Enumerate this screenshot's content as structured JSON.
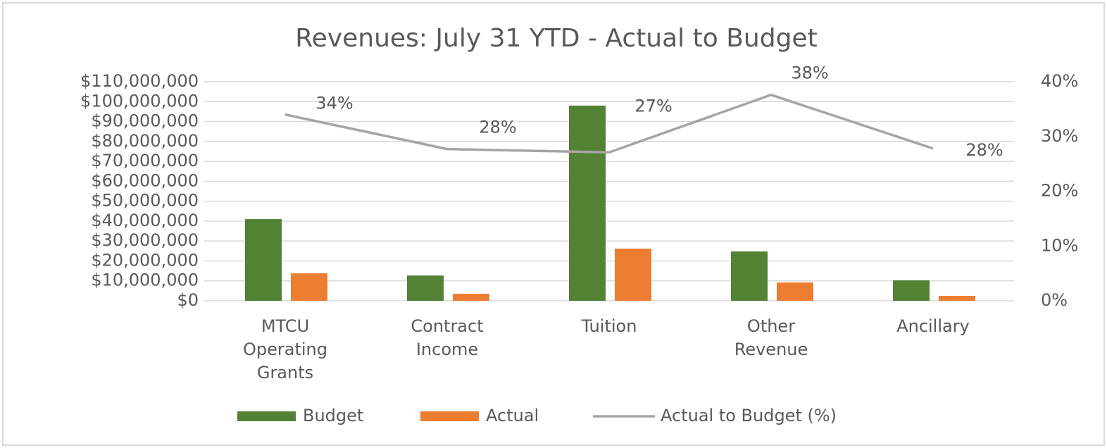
{
  "chart_data": {
    "type": "bar",
    "title": "Revenues: July 31 YTD - Actual to Budget",
    "categories": [
      "MTCU Operating Grants",
      "Contract Income",
      "Tuition",
      "Other Revenue",
      "Ancillary"
    ],
    "series": [
      {
        "name": "Budget",
        "color": "#548235",
        "type": "bar",
        "values": [
          41000000,
          12700000,
          98000000,
          24800000,
          10300000
        ]
      },
      {
        "name": "Actual",
        "color": "#ed7d31",
        "type": "bar",
        "values": [
          13800000,
          3500000,
          26200000,
          9200000,
          2500000
        ]
      },
      {
        "name": "Actual to Budget (%)",
        "color": "#a5a5a5",
        "type": "line",
        "axis": "y2",
        "values": [
          34,
          27.7,
          27.1,
          37.6,
          27.8
        ],
        "value_labels": [
          "34%",
          "28%",
          "27%",
          "38%",
          "28%"
        ]
      }
    ],
    "ylim": [
      0,
      110000000
    ],
    "yticks": [
      {
        "value": 0,
        "label": "$0"
      },
      {
        "value": 10000000,
        "label": "$10,000,000"
      },
      {
        "value": 20000000,
        "label": "$20,000,000"
      },
      {
        "value": 30000000,
        "label": "$30,000,000"
      },
      {
        "value": 40000000,
        "label": "$40,000,000"
      },
      {
        "value": 50000000,
        "label": "$50,000,000"
      },
      {
        "value": 60000000,
        "label": "$60,000,000"
      },
      {
        "value": 70000000,
        "label": "$70,000,000"
      },
      {
        "value": 80000000,
        "label": "$80,000,000"
      },
      {
        "value": 90000000,
        "label": "$90,000,000"
      },
      {
        "value": 100000000,
        "label": "$100,000,000"
      },
      {
        "value": 110000000,
        "label": "$110,000,000"
      }
    ],
    "y2lim": [
      0,
      40
    ],
    "y2ticks": [
      {
        "value": 0,
        "label": "0%"
      },
      {
        "value": 10,
        "label": "10%"
      },
      {
        "value": 20,
        "label": "20%"
      },
      {
        "value": 30,
        "label": "30%"
      },
      {
        "value": 40,
        "label": "40%"
      }
    ],
    "grid": true,
    "legend": "bottom"
  }
}
